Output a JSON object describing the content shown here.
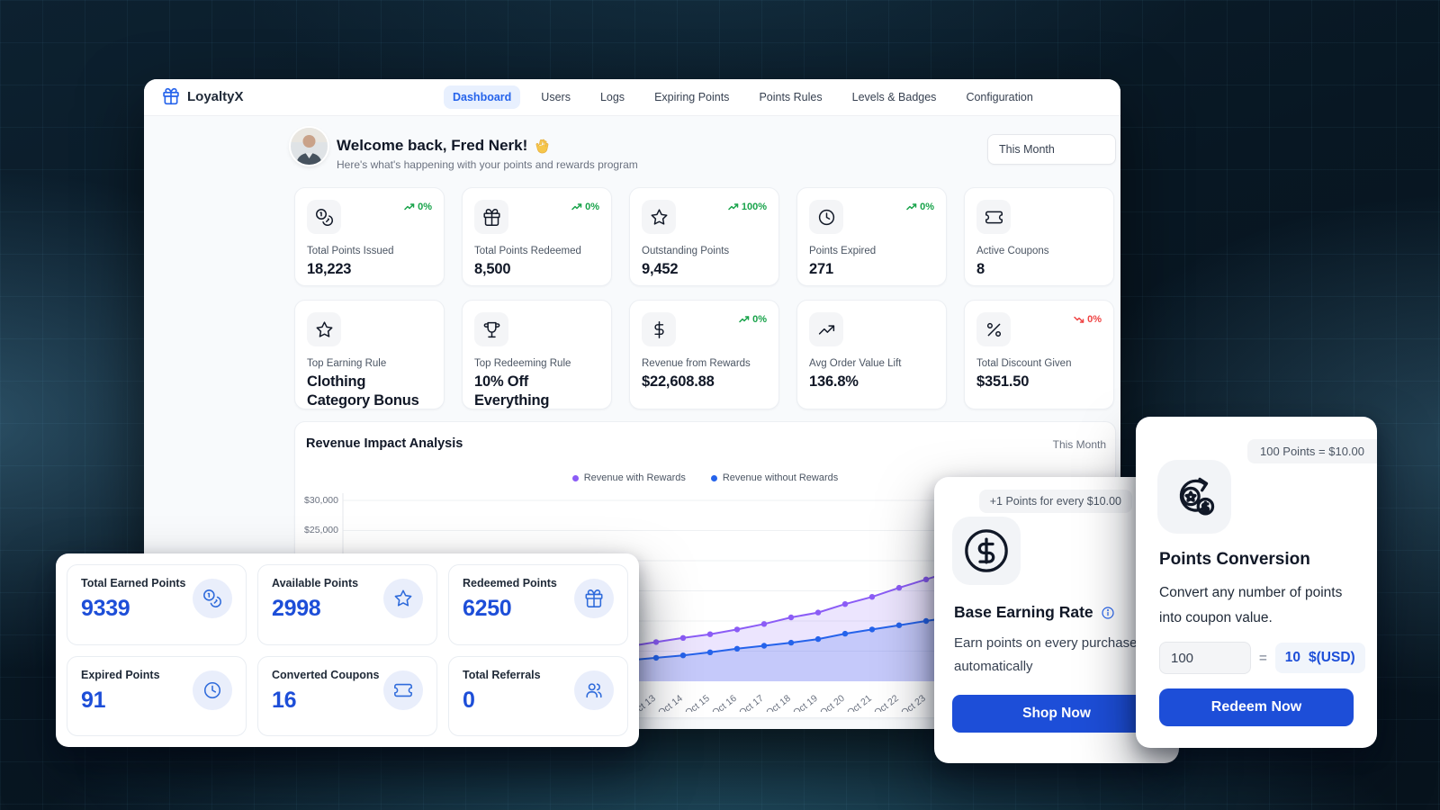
{
  "brand": {
    "name": "LoyaltyX"
  },
  "nav": {
    "tabs": [
      {
        "label": "Dashboard",
        "active": true
      },
      {
        "label": "Users",
        "active": false
      },
      {
        "label": "Logs",
        "active": false
      },
      {
        "label": "Expiring Points",
        "active": false
      },
      {
        "label": "Points Rules",
        "active": false
      },
      {
        "label": "Levels & Badges",
        "active": false
      },
      {
        "label": "Configuration",
        "active": false
      }
    ]
  },
  "header": {
    "title": "Welcome back, Fred Nerk!",
    "wave_icon": "waving-hand-icon",
    "subtitle": "Here's what's happening with your points and rewards program",
    "period": "This Month"
  },
  "stats_row1": [
    {
      "icon": "coins-icon",
      "label": "Total Points Issued",
      "value": "18,223",
      "trend": "0%",
      "trend_dir": "up"
    },
    {
      "icon": "gift-icon",
      "label": "Total Points Redeemed",
      "value": "8,500",
      "trend": "0%",
      "trend_dir": "up"
    },
    {
      "icon": "star-icon",
      "label": "Outstanding Points",
      "value": "9,452",
      "trend": "100%",
      "trend_dir": "up"
    },
    {
      "icon": "clock-icon",
      "label": "Points Expired",
      "value": "271",
      "trend": "0%",
      "trend_dir": "up"
    },
    {
      "icon": "ticket-icon",
      "label": "Active Coupons",
      "value": "8"
    }
  ],
  "stats_row2": [
    {
      "icon": "star-icon",
      "label": "Top Earning Rule",
      "value": "Clothing Category Bonus"
    },
    {
      "icon": "trophy-icon",
      "label": "Top Redeeming Rule",
      "value": "10% Off Everything"
    },
    {
      "icon": "dollar-icon",
      "label": "Revenue from Rewards",
      "value": "$22,608.88",
      "trend": "0%",
      "trend_dir": "up"
    },
    {
      "icon": "trending-up-icon",
      "label": "Avg Order Value Lift",
      "value": "136.8%"
    },
    {
      "icon": "percent-icon",
      "label": "Total Discount Given",
      "value": "$351.50",
      "trend": "0%",
      "trend_dir": "down"
    }
  ],
  "chart": {
    "title": "Revenue Impact Analysis",
    "period": "This Month"
  },
  "chart_data": {
    "type": "area",
    "title": "Revenue Impact Analysis",
    "x": [
      "Oct 13",
      "Oct 14",
      "Oct 15",
      "Oct 16",
      "Oct 17",
      "Oct 18",
      "Oct 19",
      "Oct 20",
      "Oct 21",
      "Oct 22",
      "Oct 23"
    ],
    "series": [
      {
        "name": "Revenue with Rewards",
        "color": "#8b5cf6",
        "fill": "rgba(139,92,246,0.16)",
        "values": [
          6500,
          7200,
          7800,
          8600,
          9500,
          10600,
          11400,
          12800,
          14000,
          15500,
          16900
        ]
      },
      {
        "name": "Revenue without Rewards",
        "color": "#2563eb",
        "fill": "rgba(59,103,235,0.22)",
        "values": [
          3900,
          4300,
          4800,
          5400,
          5900,
          6400,
          7000,
          7900,
          8600,
          9300,
          10000
        ]
      }
    ],
    "ylim": [
      0,
      32238
    ],
    "ygrid_values": [
      30000,
      25000,
      20000,
      15000,
      10000,
      5000
    ],
    "ytick_labels": [
      {
        "label": "$30,000",
        "value": 30000
      },
      {
        "label": "$25,000",
        "value": 25000
      },
      {
        "label": "$20,000",
        "value": 20000
      }
    ],
    "legend_position": "top-center",
    "grid": true
  },
  "summary": {
    "cards": [
      {
        "icon": "coins-icon",
        "label": "Total Earned Points",
        "value": "9339"
      },
      {
        "icon": "star-icon",
        "label": "Available Points",
        "value": "2998"
      },
      {
        "icon": "gift-icon",
        "label": "Redeemed Points",
        "value": "6250"
      },
      {
        "icon": "clock-icon",
        "label": "Expired Points",
        "value": "91"
      },
      {
        "icon": "ticket-icon",
        "label": "Converted Coupons",
        "value": "16"
      },
      {
        "icon": "users-icon",
        "label": "Total Referrals",
        "value": "0"
      }
    ]
  },
  "earning_card": {
    "badge": "+1 Points for every $10.00",
    "icon": "circle-dollar-icon",
    "title": "Base Earning Rate",
    "description": "Earn points on every purchase automatically",
    "button": "Shop Now"
  },
  "conversion_card": {
    "badge": "100 Points = $10.00",
    "icon": "points-conversion-icon",
    "title": "Points Conversion",
    "description": "Convert any number of points into coupon value.",
    "points_value": "100",
    "equals": "=",
    "result_value": "10",
    "currency_label": "$(USD)",
    "button": "Redeem Now"
  },
  "colors": {
    "accent": "#1d4ed8",
    "active_tab": "#2563eb",
    "positive": "#18a34a",
    "negative": "#ef4444",
    "series_with_rewards": "#8b5cf6",
    "series_without_rewards": "#2563eb"
  }
}
